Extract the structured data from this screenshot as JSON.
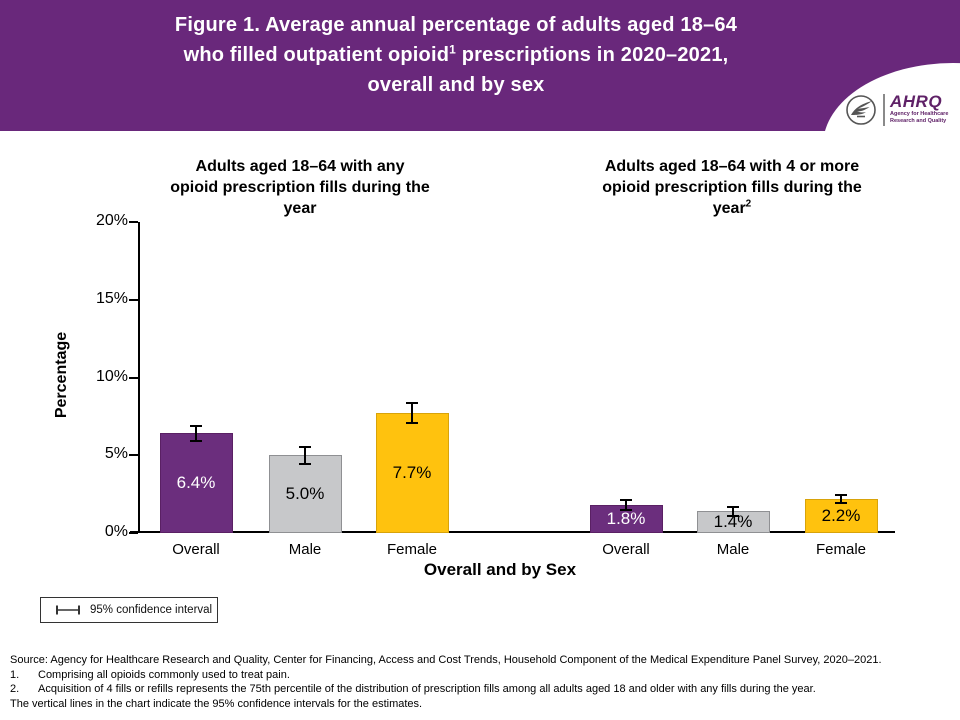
{
  "banner": {
    "title_line1": "Figure 1. Average annual percentage of adults aged 18–64",
    "title_line2_pre": "who filled outpatient opioid",
    "title_sup": "1",
    "title_line2_post": " prescriptions in 2020–2021,",
    "title_line3": "overall and by sex",
    "bg_color": "#69287B"
  },
  "logo": {
    "wordmark": "AHRQ",
    "subtext_line1": "Agency for Healthcare",
    "subtext_line2": "Research and Quality",
    "color": "#5F2167"
  },
  "chart_data": {
    "type": "bar",
    "title": "Figure 1. Average annual percentage of adults aged 18–64 who filled outpatient opioid prescriptions in 2020–2021, overall and by sex",
    "ylabel": "Percentage",
    "xlabel": "Overall and by Sex",
    "ylim": [
      0,
      20
    ],
    "yticks": [
      0,
      5,
      10,
      15,
      20
    ],
    "ytick_suffix": "%",
    "categories": [
      "Overall",
      "Male",
      "Female"
    ],
    "bar_colors": [
      "#6B2E7D",
      "#C7C8CA",
      "#FFC20E"
    ],
    "bar_border_colors": [
      "#5A2064",
      "#8F9093",
      "#D8A30A"
    ],
    "panels": [
      {
        "title": "Adults aged 18–64 with any opioid prescription fills during the year",
        "title_lines": [
          "Adults aged 18–64 with any",
          "opioid prescription fills during the",
          "year"
        ],
        "values": [
          6.4,
          5.0,
          7.7
        ],
        "labels": [
          "6.4%",
          "5.0%",
          "7.7%"
        ],
        "ci_halfwidth_est": [
          0.5,
          0.55,
          0.65
        ]
      },
      {
        "title": "Adults aged 18–64 with 4 or more opioid prescription fills during the year",
        "title_lines": [
          "Adults aged 18–64 with 4 or more",
          "opioid prescription fills during the",
          "year"
        ],
        "title_sup": "2",
        "values": [
          1.8,
          1.4,
          2.2
        ],
        "labels": [
          "1.8%",
          "1.4%",
          "2.2%"
        ],
        "ci_halfwidth_est": [
          0.3,
          0.3,
          0.25
        ]
      }
    ],
    "legend": "95% confidence interval",
    "legend_position": "bottom-left",
    "grid": false
  },
  "footer": {
    "source": "Source: Agency for Healthcare Research and Quality, Center for Financing, Access and Cost Trends, Household Component of the Medical Expenditure Panel Survey, 2020–2021.",
    "footnotes": [
      {
        "num": "1.",
        "text": "Comprising all opioids commonly used to treat pain."
      },
      {
        "num": "2.",
        "text": "Acquisition of 4 fills or refills represents the 75th percentile of the distribution of prescription fills among all adults aged 18 and older with any fills during the year."
      }
    ],
    "note": "The vertical lines in the chart indicate the 95% confidence intervals for the estimates."
  }
}
